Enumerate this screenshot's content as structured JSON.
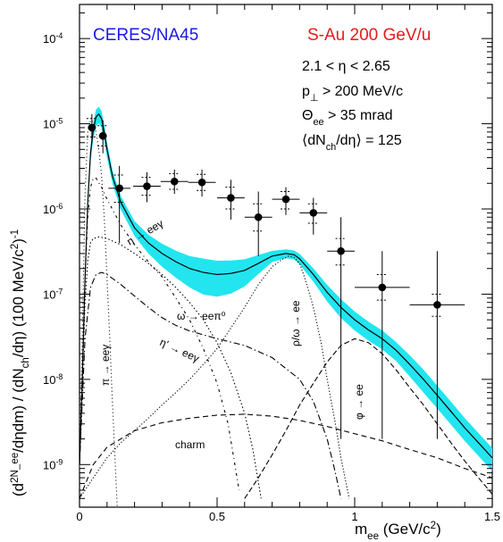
{
  "chart_data": {
    "type": "scatter",
    "experiment_label": "CERES/NA45",
    "system_label": "S-Au 200 GeV/u",
    "cuts": [
      {
        "pre": "2.1 < η < 2.65"
      },
      {
        "pre": "p",
        "sub": "⊥",
        "post": " > 200 MeV/c"
      },
      {
        "pre": "Θ",
        "sub": "ee",
        "post": " > 35 mrad"
      },
      {
        "pre": "⟨dN",
        "sub": "ch",
        "post": "/dη⟩ = 125"
      }
    ],
    "xlabel": "m_ee (GeV/c^2)",
    "ylabel": "(d^2N_ee/dηdm) / (dN_ch/dη) (100 MeV/c^2)^-1",
    "xlim": [
      0,
      1.5
    ],
    "ylim_log10": [
      -9.5,
      -3.6
    ],
    "log_y": true,
    "x_ticks": [
      {
        "v": 0,
        "label": "0"
      },
      {
        "v": 0.5,
        "label": "0.5"
      },
      {
        "v": 1,
        "label": "1"
      },
      {
        "v": 1.5,
        "label": "1.5"
      }
    ],
    "y_ticks": [
      {
        "e": -9,
        "label": "10^-9"
      },
      {
        "e": -8,
        "label": "10^-8"
      },
      {
        "e": -7,
        "label": "10^-7"
      },
      {
        "e": -6,
        "label": "10^-6"
      },
      {
        "e": -5,
        "label": "10^-5"
      },
      {
        "e": -4,
        "label": "10^-4"
      }
    ],
    "data_points": [
      {
        "x": 0.045,
        "y": 9e-06,
        "xerr": 0.015,
        "ylo": 6e-06,
        "yhi": 1.3e-05,
        "syslo": 7e-06,
        "syshi": 1.15e-05
      },
      {
        "x": 0.085,
        "y": 7.2e-06,
        "xerr": 0.015,
        "ylo": 4.5e-06,
        "yhi": 1.1e-05,
        "syslo": 5.5e-06,
        "syshi": 9.5e-06
      },
      {
        "x": 0.145,
        "y": 1.75e-06,
        "xerr": 0.04,
        "ylo": 4e-07,
        "yhi": 3.2e-06,
        "syslo": 1.2e-06,
        "syshi": 2.5e-06
      },
      {
        "x": 0.245,
        "y": 1.85e-06,
        "xerr": 0.05,
        "ylo": 1.2e-06,
        "yhi": 2.7e-06,
        "syslo": 1.45e-06,
        "syshi": 2.35e-06
      },
      {
        "x": 0.345,
        "y": 2.1e-06,
        "xerr": 0.05,
        "ylo": 1.5e-06,
        "yhi": 2.9e-06,
        "syslo": 1.7e-06,
        "syshi": 2.6e-06
      },
      {
        "x": 0.445,
        "y": 2.05e-06,
        "xerr": 0.05,
        "ylo": 1.4e-06,
        "yhi": 2.9e-06,
        "syslo": 1.65e-06,
        "syshi": 2.55e-06
      },
      {
        "x": 0.55,
        "y": 1.35e-06,
        "xerr": 0.05,
        "ylo": 7.5e-07,
        "yhi": 2.2e-06,
        "syslo": 1e-06,
        "syshi": 1.8e-06
      },
      {
        "x": 0.65,
        "y": 8e-07,
        "xerr": 0.05,
        "ylo": 2.8e-07,
        "yhi": 1.6e-06,
        "syslo": 5.5e-07,
        "syshi": 1.15e-06
      },
      {
        "x": 0.75,
        "y": 1.3e-06,
        "xerr": 0.05,
        "ylo": 8.5e-07,
        "yhi": 1.8e-06,
        "syslo": 1e-06,
        "syshi": 1.6e-06
      },
      {
        "x": 0.85,
        "y": 9e-07,
        "xerr": 0.05,
        "ylo": 5e-07,
        "yhi": 1.35e-06,
        "syslo": 6.8e-07,
        "syshi": 1.15e-06
      },
      {
        "x": 0.95,
        "y": 3.2e-07,
        "xerr": 0.05,
        "ylo": 2e-09,
        "yhi": 8e-07,
        "syslo": 2.2e-07,
        "syshi": 4.5e-07
      },
      {
        "x": 1.1,
        "y": 1.2e-07,
        "xerr": 0.1,
        "ylo": 2e-09,
        "yhi": 3.2e-07,
        "syslo": 8.5e-08,
        "syshi": 1.7e-07
      },
      {
        "x": 1.3,
        "y": 7.5e-08,
        "xerr": 0.1,
        "ylo": 2e-09,
        "yhi": 3.2e-07,
        "syslo": 5.5e-08,
        "syshi": 1e-07
      }
    ],
    "total_cocktail": {
      "x": [
        0.0,
        0.01,
        0.02,
        0.03,
        0.04,
        0.05,
        0.06,
        0.07,
        0.08,
        0.09,
        0.1,
        0.12,
        0.15,
        0.2,
        0.25,
        0.3,
        0.35,
        0.4,
        0.45,
        0.5,
        0.55,
        0.6,
        0.65,
        0.7,
        0.75,
        0.78,
        0.8,
        0.85,
        0.9,
        0.95,
        1.0,
        1.05,
        1.1,
        1.15,
        1.2,
        1.25,
        1.3,
        1.35,
        1.4,
        1.45,
        1.5
      ],
      "y": [
        1e-09,
        1e-08,
        1.5e-07,
        1.2e-06,
        4.5e-06,
        8.5e-06,
        1.2e-05,
        1.3e-05,
        1.15e-05,
        8e-06,
        5e-06,
        2.4e-06,
        1.2e-06,
        6e-07,
        4e-07,
        3e-07,
        2.4e-07,
        2e-07,
        1.8e-07,
        1.7e-07,
        1.75e-07,
        1.9e-07,
        2.3e-07,
        2.8e-07,
        3e-07,
        2.9e-07,
        2.6e-07,
        1.7e-07,
        1.05e-07,
        7e-08,
        5e-08,
        3.8e-08,
        3e-08,
        2.2e-08,
        1.5e-08,
        1e-08,
        6.5e-09,
        4.2e-09,
        2.7e-09,
        1.8e-09,
        1.2e-09
      ],
      "band_frac": [
        0.22,
        0.22,
        0.22,
        0.22,
        0.22,
        0.22,
        0.22,
        0.22,
        0.22,
        0.22,
        0.2,
        0.18,
        0.18,
        0.2,
        0.25,
        0.3,
        0.35,
        0.4,
        0.45,
        0.45,
        0.42,
        0.35,
        0.25,
        0.15,
        0.12,
        0.12,
        0.14,
        0.18,
        0.22,
        0.25,
        0.25,
        0.25,
        0.25,
        0.25,
        0.28,
        0.3,
        0.3,
        0.3,
        0.3,
        0.3,
        0.3
      ]
    },
    "components": [
      {
        "name": "η → eeγ",
        "x": [
          0.0,
          0.01,
          0.02,
          0.03,
          0.04,
          0.05,
          0.06,
          0.08,
          0.1,
          0.15,
          0.2,
          0.25,
          0.3,
          0.35,
          0.4,
          0.45,
          0.5,
          0.54,
          0.58
        ],
        "y": [
          1e-09,
          1e-08,
          1.5e-07,
          8e-07,
          1.8e-06,
          2.3e-06,
          2.3e-06,
          1.8e-06,
          1.3e-06,
          6.5e-07,
          3.8e-07,
          2.4e-07,
          1.6e-07,
          9e-08,
          5e-08,
          2.3e-08,
          9e-09,
          3e-09,
          5e-10
        ]
      },
      {
        "name": "π → eeγ",
        "x": [
          0.0,
          0.01,
          0.02,
          0.03,
          0.04,
          0.05,
          0.06,
          0.07,
          0.08,
          0.09,
          0.1,
          0.11,
          0.12,
          0.13,
          0.14
        ],
        "y": [
          1e-09,
          3e-08,
          1.5e-06,
          8e-06,
          1.1e-05,
          1.05e-05,
          8e-06,
          5e-06,
          2.5e-06,
          8e-07,
          1.5e-07,
          3e-08,
          5e-09,
          1e-09,
          2e-10
        ]
      },
      {
        "name": "ω → eeπ⁰",
        "x": [
          0.0,
          0.01,
          0.02,
          0.03,
          0.04,
          0.05,
          0.07,
          0.1,
          0.15,
          0.2,
          0.25,
          0.3,
          0.35,
          0.4,
          0.45,
          0.5,
          0.55,
          0.6,
          0.63,
          0.66
        ],
        "y": [
          1e-09,
          1e-08,
          8e-08,
          2.5e-07,
          4e-07,
          4.5e-07,
          4.7e-07,
          4.5e-07,
          3.8e-07,
          3e-07,
          2.3e-07,
          1.7e-07,
          1.2e-07,
          8e-08,
          5e-08,
          2.7e-08,
          1.2e-08,
          4e-09,
          1.5e-09,
          4e-10
        ]
      },
      {
        "name": "η' → eeγ",
        "x": [
          0.0,
          0.02,
          0.04,
          0.06,
          0.08,
          0.1,
          0.15,
          0.2,
          0.25,
          0.3,
          0.35,
          0.4,
          0.5,
          0.6,
          0.7,
          0.8,
          0.85,
          0.9,
          0.93,
          0.95
        ],
        "y": [
          1e-09,
          3e-08,
          1.2e-07,
          1.7e-07,
          1.8e-07,
          1.7e-07,
          1.3e-07,
          9.5e-08,
          7e-08,
          5.3e-08,
          4.3e-08,
          3.7e-08,
          3e-08,
          2.5e-08,
          1.8e-08,
          1e-08,
          5.5e-09,
          2e-09,
          8e-10,
          4e-10
        ]
      },
      {
        "name": "ρ/ω → ee",
        "x": [
          0.0,
          0.05,
          0.1,
          0.15,
          0.2,
          0.25,
          0.3,
          0.35,
          0.4,
          0.45,
          0.5,
          0.55,
          0.6,
          0.65,
          0.7,
          0.74,
          0.76,
          0.78,
          0.8,
          0.82,
          0.85,
          0.88,
          0.9,
          0.93,
          0.95,
          0.98
        ],
        "y": [
          4e-10,
          7e-10,
          1.2e-09,
          1.8e-09,
          2.5e-09,
          3.5e-09,
          5e-09,
          7e-09,
          1e-08,
          1.5e-08,
          2.3e-08,
          4e-08,
          7e-08,
          1.3e-07,
          2.1e-07,
          2.6e-07,
          2.8e-07,
          2.7e-07,
          2.3e-07,
          1.5e-07,
          7e-08,
          2.5e-08,
          1e-08,
          3e-09,
          1.2e-09,
          4e-10
        ]
      },
      {
        "name": "φ → ee",
        "x": [
          0.6,
          0.65,
          0.7,
          0.75,
          0.8,
          0.85,
          0.9,
          0.95,
          1.0,
          1.05,
          1.1,
          1.15,
          1.2,
          1.25,
          1.3,
          1.35,
          1.4,
          1.45,
          1.5
        ],
        "y": [
          4e-10,
          7e-10,
          1.3e-09,
          2.5e-09,
          5e-09,
          9e-09,
          1.6e-08,
          2.5e-08,
          3e-08,
          2.7e-08,
          2e-08,
          1.3e-08,
          8e-09,
          5e-09,
          3e-09,
          1.8e-09,
          1.1e-09,
          7e-10,
          4.5e-10
        ]
      },
      {
        "name": "charm",
        "x": [
          0.0,
          0.05,
          0.1,
          0.2,
          0.3,
          0.4,
          0.5,
          0.6,
          0.7,
          0.8,
          0.9,
          1.0,
          1.1,
          1.2,
          1.3,
          1.4,
          1.5
        ],
        "y": [
          4e-10,
          1e-09,
          1.6e-09,
          2.5e-09,
          3.1e-09,
          3.5e-09,
          3.8e-09,
          3.9e-09,
          3.7e-09,
          3.3e-09,
          2.8e-09,
          2.3e-09,
          1.9e-09,
          1.5e-09,
          1.2e-09,
          9e-10,
          7e-10
        ]
      }
    ]
  }
}
